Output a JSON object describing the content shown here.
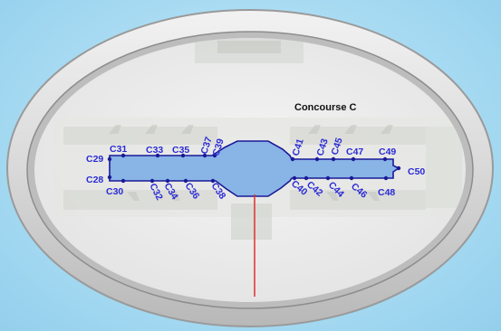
{
  "map": {
    "title": "Concourse C",
    "colors": {
      "concourse_fill": "#88b4e6",
      "concourse_stroke": "#1a1a99",
      "gate_label": "#2b2bd6",
      "gate_dot": "#1a1a99",
      "pointer_line": "#e0302a",
      "frame": "#dcdcdc",
      "background": "#aadcf3"
    },
    "gates": {
      "top": [
        "C31",
        "C33",
        "C35",
        "C37",
        "C39",
        "C41",
        "C43",
        "C45",
        "C47",
        "C49"
      ],
      "bottom": [
        "C30",
        "C32",
        "C34",
        "C36",
        "C38",
        "C40",
        "C42",
        "C44",
        "C46",
        "C48"
      ],
      "left_end": [
        "C29",
        "C28"
      ],
      "right_end": [
        "C50"
      ]
    }
  }
}
